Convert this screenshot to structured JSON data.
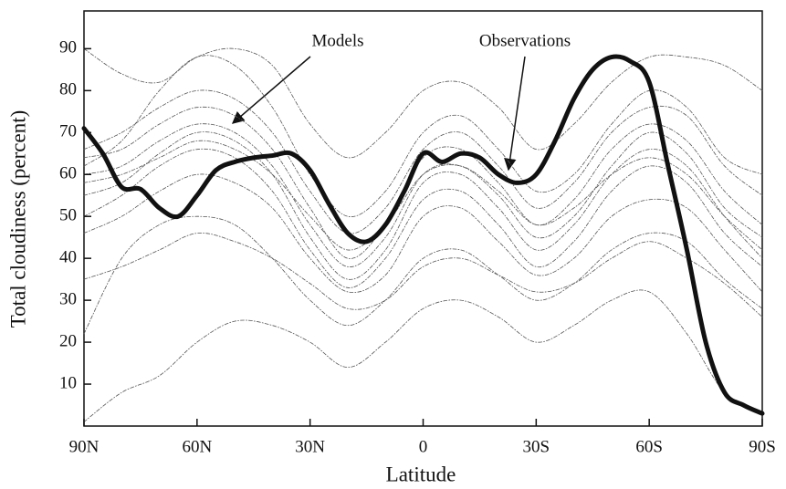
{
  "chart_data": {
    "type": "line",
    "xlabel": "Latitude",
    "ylabel": "Total  cloudiness (percent)",
    "annotations": [
      {
        "text": "Models"
      },
      {
        "text": "Observations"
      }
    ],
    "xlim": [
      90,
      -90
    ],
    "xticks": [
      {
        "value": 90,
        "label": "90N"
      },
      {
        "value": 60,
        "label": "60N"
      },
      {
        "value": 30,
        "label": "30N"
      },
      0,
      {
        "value": -30,
        "label": "30S"
      },
      {
        "value": -60,
        "label": "60S"
      },
      {
        "value": -90,
        "label": "90S"
      }
    ],
    "ylim": [
      0,
      99
    ],
    "yticks": [
      10,
      20,
      30,
      40,
      50,
      60,
      70,
      80,
      90
    ],
    "series": [
      {
        "color": "#111111",
        "width": 5,
        "dashed": false,
        "x": [
          90,
          85,
          80,
          75,
          70,
          65,
          60,
          55,
          50,
          45,
          40,
          35,
          30,
          25,
          20,
          15,
          10,
          5,
          0,
          -5,
          -10,
          -15,
          -20,
          -25,
          -30,
          -35,
          -40,
          -45,
          -50,
          -55,
          -60,
          -65,
          -70,
          -75,
          -80,
          -85,
          -90
        ],
        "values": [
          71,
          65,
          57,
          56.5,
          52,
          50,
          55,
          61,
          63,
          64,
          64.5,
          65,
          61,
          53,
          46,
          44,
          48,
          56,
          65,
          63,
          65,
          64,
          60,
          58,
          60,
          68,
          78,
          85,
          88,
          87,
          82,
          62,
          42,
          20,
          8,
          5,
          3
        ]
      },
      {
        "color": "#555555",
        "width": 0.8,
        "dashed": true,
        "x": [
          90,
          80,
          70,
          60,
          50,
          40,
          30,
          20,
          10,
          0,
          -10,
          -20,
          -30,
          -40,
          -50,
          -60,
          -70,
          -80,
          -90
        ],
        "values": [
          60,
          62,
          68,
          72,
          70,
          62,
          48,
          38,
          45,
          60,
          62,
          55,
          45,
          50,
          62,
          70,
          65,
          52,
          45
        ]
      },
      {
        "color": "#555555",
        "width": 0.8,
        "dashed": true,
        "x": [
          90,
          80,
          70,
          60,
          50,
          40,
          30,
          20,
          10,
          0,
          -10,
          -20,
          -30,
          -40,
          -50,
          -60,
          -70,
          -80,
          -90
        ],
        "values": [
          55,
          58,
          65,
          70,
          68,
          60,
          45,
          35,
          42,
          58,
          60,
          52,
          42,
          48,
          60,
          66,
          62,
          50,
          40
        ]
      },
      {
        "color": "#555555",
        "width": 0.8,
        "dashed": true,
        "x": [
          90,
          80,
          70,
          60,
          50,
          40,
          30,
          20,
          10,
          0,
          -10,
          -20,
          -30,
          -40,
          -50,
          -60,
          -70,
          -80,
          -90
        ],
        "values": [
          64,
          66,
          72,
          76,
          74,
          66,
          52,
          40,
          48,
          64,
          66,
          58,
          48,
          54,
          66,
          72,
          68,
          56,
          48
        ]
      },
      {
        "color": "#555555",
        "width": 0.8,
        "dashed": true,
        "x": [
          90,
          80,
          70,
          60,
          50,
          40,
          30,
          20,
          10,
          0,
          -10,
          -20,
          -30,
          -40,
          -50,
          -60,
          -70,
          -80,
          -90
        ],
        "values": [
          50,
          55,
          62,
          66,
          64,
          56,
          42,
          33,
          40,
          54,
          56,
          48,
          38,
          44,
          56,
          62,
          58,
          46,
          38
        ]
      },
      {
        "color": "#555555",
        "width": 0.8,
        "dashed": true,
        "x": [
          90,
          80,
          70,
          60,
          50,
          40,
          30,
          20,
          10,
          0,
          -10,
          -20,
          -30,
          -40,
          -50,
          -60,
          -70,
          -80,
          -90
        ],
        "values": [
          90,
          84,
          82,
          88,
          90,
          86,
          72,
          64,
          70,
          80,
          82,
          76,
          66,
          72,
          82,
          88,
          88,
          86,
          80
        ]
      },
      {
        "color": "#555555",
        "width": 0.8,
        "dashed": true,
        "x": [
          90,
          80,
          70,
          60,
          50,
          40,
          30,
          20,
          10,
          0,
          -10,
          -20,
          -30,
          -40,
          -50,
          -60,
          -70,
          -80,
          -90
        ],
        "values": [
          22,
          40,
          48,
          50,
          48,
          40,
          30,
          24,
          30,
          40,
          42,
          36,
          30,
          34,
          42,
          46,
          44,
          35,
          28
        ]
      },
      {
        "color": "#555555",
        "width": 0.8,
        "dashed": true,
        "x": [
          90,
          80,
          70,
          60,
          50,
          40,
          30,
          20,
          10,
          0,
          -10,
          -20,
          -30,
          -40,
          -50,
          -60,
          -70,
          -80,
          -90
        ],
        "values": [
          1,
          8,
          12,
          20,
          25,
          24,
          20,
          14,
          20,
          28,
          30,
          26,
          20,
          24,
          30,
          32,
          22,
          8,
          3
        ]
      },
      {
        "color": "#555555",
        "width": 0.8,
        "dashed": true,
        "x": [
          90,
          80,
          70,
          60,
          50,
          40,
          30,
          20,
          10,
          0,
          -10,
          -20,
          -30,
          -40,
          -50,
          -60,
          -70,
          -80,
          -90
        ],
        "values": [
          58,
          60,
          64,
          68,
          66,
          60,
          50,
          42,
          48,
          60,
          62,
          56,
          48,
          52,
          60,
          64,
          60,
          50,
          42
        ]
      },
      {
        "color": "#555555",
        "width": 0.8,
        "dashed": true,
        "x": [
          90,
          80,
          70,
          60,
          50,
          40,
          30,
          20,
          10,
          0,
          -10,
          -20,
          -30,
          -40,
          -50,
          -60,
          -70,
          -80,
          -90
        ],
        "values": [
          46,
          50,
          56,
          60,
          58,
          52,
          40,
          32,
          36,
          50,
          52,
          44,
          36,
          40,
          50,
          54,
          52,
          42,
          32
        ]
      },
      {
        "color": "#555555",
        "width": 0.8,
        "dashed": true,
        "x": [
          90,
          80,
          70,
          60,
          50,
          40,
          30,
          20,
          10,
          0,
          -10,
          -20,
          -30,
          -40,
          -50,
          -60,
          -70,
          -80,
          -90
        ],
        "values": [
          66,
          70,
          76,
          80,
          78,
          70,
          56,
          46,
          52,
          66,
          70,
          62,
          52,
          58,
          70,
          76,
          74,
          62,
          55
        ]
      },
      {
        "color": "#555555",
        "width": 0.8,
        "dashed": true,
        "x": [
          90,
          80,
          70,
          60,
          50,
          40,
          30,
          20,
          10,
          0,
          -10,
          -20,
          -30,
          -40,
          -50,
          -60,
          -70,
          -80,
          -90
        ],
        "values": [
          62,
          68,
          80,
          88,
          86,
          76,
          60,
          50,
          56,
          70,
          74,
          66,
          56,
          60,
          72,
          80,
          76,
          64,
          60
        ]
      },
      {
        "color": "#555555",
        "width": 0.8,
        "dashed": true,
        "x": [
          90,
          80,
          70,
          60,
          50,
          40,
          30,
          20,
          10,
          0,
          -10,
          -20,
          -30,
          -40,
          -50,
          -60,
          -70,
          -80,
          -90
        ],
        "values": [
          35,
          38,
          42,
          46,
          44,
          40,
          34,
          28,
          30,
          38,
          40,
          36,
          32,
          34,
          40,
          44,
          40,
          34,
          26
        ]
      }
    ]
  }
}
